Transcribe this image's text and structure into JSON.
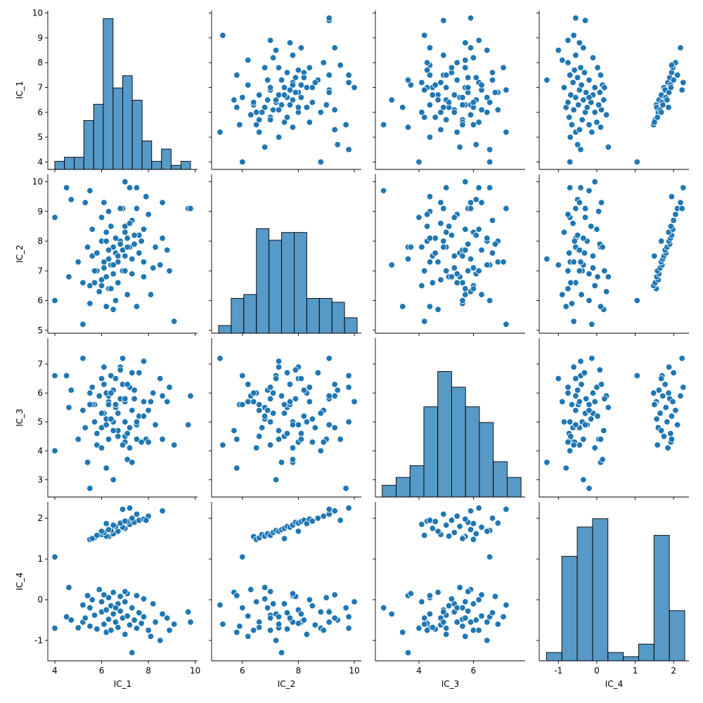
{
  "chart_data": {
    "type": "pairplot",
    "color": "#1f77b4",
    "variables": [
      {
        "name": "IC_1",
        "lim": [
          3.7,
          10.1
        ],
        "xticks": [
          4,
          6,
          8,
          10
        ],
        "yticks": [
          4,
          5,
          6,
          7,
          8,
          9,
          10
        ],
        "bins": [
          4.0,
          4.41,
          4.83,
          5.24,
          5.66,
          6.07,
          6.49,
          6.9,
          7.31,
          7.73,
          8.14,
          8.56,
          8.97,
          9.39,
          9.8
        ],
        "counts": [
          2,
          3,
          3,
          12,
          16,
          37,
          20,
          23,
          17,
          7,
          2,
          5,
          1,
          2
        ],
        "count_ylim": [
          0,
          39
        ]
      },
      {
        "name": "IC_2",
        "lim": [
          4.9,
          10.25
        ],
        "xticks": [
          6,
          8,
          10
        ],
        "yticks": [
          5,
          6,
          7,
          8,
          9,
          10
        ],
        "bins": [
          5.15,
          5.6,
          6.05,
          6.5,
          6.95,
          7.4,
          7.85,
          8.3,
          8.75,
          9.2,
          9.65,
          10.1
        ],
        "counts": [
          2,
          9,
          10,
          27,
          24,
          26,
          26,
          9,
          9,
          8,
          4
        ],
        "count_ylim": [
          0,
          41
        ]
      },
      {
        "name": "IC_3",
        "lim": [
          2.4,
          7.9
        ],
        "xticks": [
          4,
          6
        ],
        "yticks": [
          3,
          4,
          5,
          6,
          7
        ],
        "bins": [
          2.65,
          3.16,
          3.67,
          4.18,
          4.69,
          5.2,
          5.71,
          6.22,
          6.73,
          7.24,
          7.75
        ],
        "counts": [
          3,
          5,
          8,
          23,
          32,
          28,
          23,
          19,
          9,
          5
        ],
        "count_ylim": [
          0,
          40.5
        ]
      },
      {
        "name": "IC_4",
        "lim": [
          -1.5,
          2.4
        ],
        "xticks": [
          -1,
          0,
          1,
          2
        ],
        "yticks": [
          -1,
          0,
          1,
          2
        ],
        "bins": [
          -1.31,
          -0.91,
          -0.51,
          -0.11,
          0.29,
          0.69,
          1.09,
          1.49,
          1.89,
          2.29
        ],
        "counts": [
          2,
          25,
          32,
          34,
          2,
          1,
          4,
          30,
          12
        ],
        "count_ylim": [
          0,
          38
        ]
      }
    ],
    "rows": [
      [
        6.3,
        6.4,
        5.7,
        1.55
      ],
      [
        5.5,
        6.5,
        6.0,
        1.48
      ],
      [
        5.7,
        6.6,
        5.6,
        1.52
      ],
      [
        6.0,
        6.7,
        4.8,
        1.6
      ],
      [
        6.2,
        6.8,
        5.1,
        1.56
      ],
      [
        6.5,
        6.9,
        6.1,
        1.62
      ],
      [
        5.8,
        7.0,
        4.2,
        1.58
      ],
      [
        6.1,
        7.1,
        5.3,
        1.65
      ],
      [
        6.4,
        7.2,
        6.6,
        1.7
      ],
      [
        6.7,
        7.3,
        4.7,
        1.68
      ],
      [
        6.3,
        7.4,
        5.9,
        1.72
      ],
      [
        7.0,
        7.5,
        4.5,
        1.75
      ],
      [
        6.6,
        7.6,
        5.5,
        1.8
      ],
      [
        6.9,
        7.7,
        6.3,
        1.78
      ],
      [
        7.2,
        7.8,
        4.1,
        1.85
      ],
      [
        6.5,
        7.8,
        5.0,
        1.83
      ],
      [
        7.4,
        7.9,
        5.8,
        1.9
      ],
      [
        6.8,
        8.0,
        6.9,
        1.88
      ],
      [
        7.1,
        8.1,
        4.6,
        1.92
      ],
      [
        7.6,
        8.2,
        5.2,
        1.95
      ],
      [
        6.2,
        8.3,
        6.0,
        1.87
      ],
      [
        7.8,
        8.4,
        5.7,
        1.98
      ],
      [
        7.0,
        8.5,
        4.3,
        1.93
      ],
      [
        7.3,
        8.7,
        6.7,
        2.0
      ],
      [
        8.0,
        8.9,
        5.4,
        2.05
      ],
      [
        7.5,
        9.1,
        4.9,
        2.1
      ],
      [
        8.6,
        9.3,
        5.9,
        2.18
      ],
      [
        7.9,
        9.5,
        4.4,
        1.95
      ],
      [
        7.2,
        9.8,
        6.2,
        2.25
      ],
      [
        6.9,
        9.1,
        7.2,
        2.22
      ],
      [
        5.6,
        7.5,
        5.6,
        1.5
      ],
      [
        6.0,
        8.0,
        6.5,
        1.68
      ],
      [
        4.0,
        6.0,
        6.6,
        1.05
      ],
      [
        4.0,
        8.8,
        4.0,
        -0.7
      ],
      [
        4.5,
        9.8,
        6.6,
        -0.42
      ],
      [
        4.6,
        6.8,
        5.5,
        0.3
      ],
      [
        4.7,
        9.4,
        6.1,
        -0.5
      ],
      [
        5.0,
        7.3,
        4.4,
        -0.69
      ],
      [
        5.2,
        5.2,
        7.2,
        -0.13
      ],
      [
        5.2,
        6.6,
        5.4,
        -0.55
      ],
      [
        5.3,
        9.3,
        4.8,
        -0.45
      ],
      [
        5.4,
        7.8,
        3.6,
        0.1
      ],
      [
        5.5,
        9.7,
        2.7,
        -0.2
      ],
      [
        5.5,
        5.9,
        5.6,
        -0.65
      ],
      [
        5.6,
        8.4,
        6.2,
        0.0
      ],
      [
        5.7,
        7.0,
        5.0,
        -0.38
      ],
      [
        5.8,
        7.6,
        4.6,
        -0.72
      ],
      [
        5.9,
        6.3,
        5.9,
        0.25
      ],
      [
        6.0,
        8.8,
        5.3,
        -0.3
      ],
      [
        6.0,
        6.5,
        4.1,
        -0.05
      ],
      [
        6.1,
        9.3,
        6.3,
        0.12
      ],
      [
        6.1,
        7.3,
        6.9,
        -0.6
      ],
      [
        6.2,
        8.0,
        4.9,
        -0.25
      ],
      [
        6.2,
        5.8,
        3.4,
        -0.8
      ],
      [
        6.3,
        7.7,
        5.6,
        -0.48
      ],
      [
        6.3,
        9.0,
        4.4,
        0.05
      ],
      [
        6.4,
        6.4,
        6.0,
        -0.75
      ],
      [
        6.4,
        8.5,
        5.1,
        -0.15
      ],
      [
        6.5,
        7.2,
        3.0,
        -0.35
      ],
      [
        6.5,
        5.7,
        4.7,
        0.18
      ],
      [
        6.6,
        8.1,
        6.5,
        -0.55
      ],
      [
        6.7,
        7.5,
        5.3,
        -0.1
      ],
      [
        6.7,
        6.6,
        4.5,
        -0.68
      ],
      [
        6.8,
        9.1,
        5.8,
        -0.28
      ],
      [
        6.8,
        7.9,
        6.8,
        0.08
      ],
      [
        6.9,
        7.0,
        4.2,
        -0.45
      ],
      [
        7.0,
        8.3,
        5.0,
        -0.85
      ],
      [
        7.0,
        10.0,
        5.7,
        -0.05
      ],
      [
        7.1,
        6.2,
        6.3,
        -0.4
      ],
      [
        7.1,
        7.8,
        3.7,
        0.15
      ],
      [
        7.2,
        8.6,
        4.8,
        -0.62
      ],
      [
        7.3,
        6.9,
        5.4,
        -0.2
      ],
      [
        7.3,
        7.4,
        3.6,
        -1.3
      ],
      [
        7.4,
        8.2,
        6.1,
        -0.5
      ],
      [
        7.5,
        5.8,
        4.4,
        0.1
      ],
      [
        7.5,
        9.8,
        5.0,
        -0.7
      ],
      [
        7.6,
        7.6,
        6.7,
        -0.32
      ],
      [
        7.7,
        8.0,
        4.3,
        -0.58
      ],
      [
        7.8,
        6.8,
        5.2,
        0.02
      ],
      [
        7.8,
        7.3,
        7.1,
        -0.42
      ],
      [
        8.0,
        8.9,
        4.3,
        -0.75
      ],
      [
        8.1,
        6.2,
        5.7,
        -0.9
      ],
      [
        8.2,
        7.1,
        6.0,
        -0.1
      ],
      [
        8.3,
        7.8,
        4.9,
        -0.55
      ],
      [
        8.5,
        7.2,
        6.5,
        -1.0
      ],
      [
        8.6,
        8.1,
        4.4,
        -0.35
      ],
      [
        8.8,
        7.7,
        5.7,
        -0.45
      ],
      [
        8.9,
        7.0,
        6.2,
        -0.75
      ],
      [
        9.1,
        5.3,
        4.2,
        -0.6
      ],
      [
        9.7,
        9.1,
        4.9,
        -0.3
      ],
      [
        9.8,
        9.1,
        5.9,
        -0.55
      ],
      [
        6.6,
        6.0,
        5.6,
        -0.2
      ],
      [
        7.0,
        7.0,
        5.8,
        0.2
      ]
    ]
  }
}
